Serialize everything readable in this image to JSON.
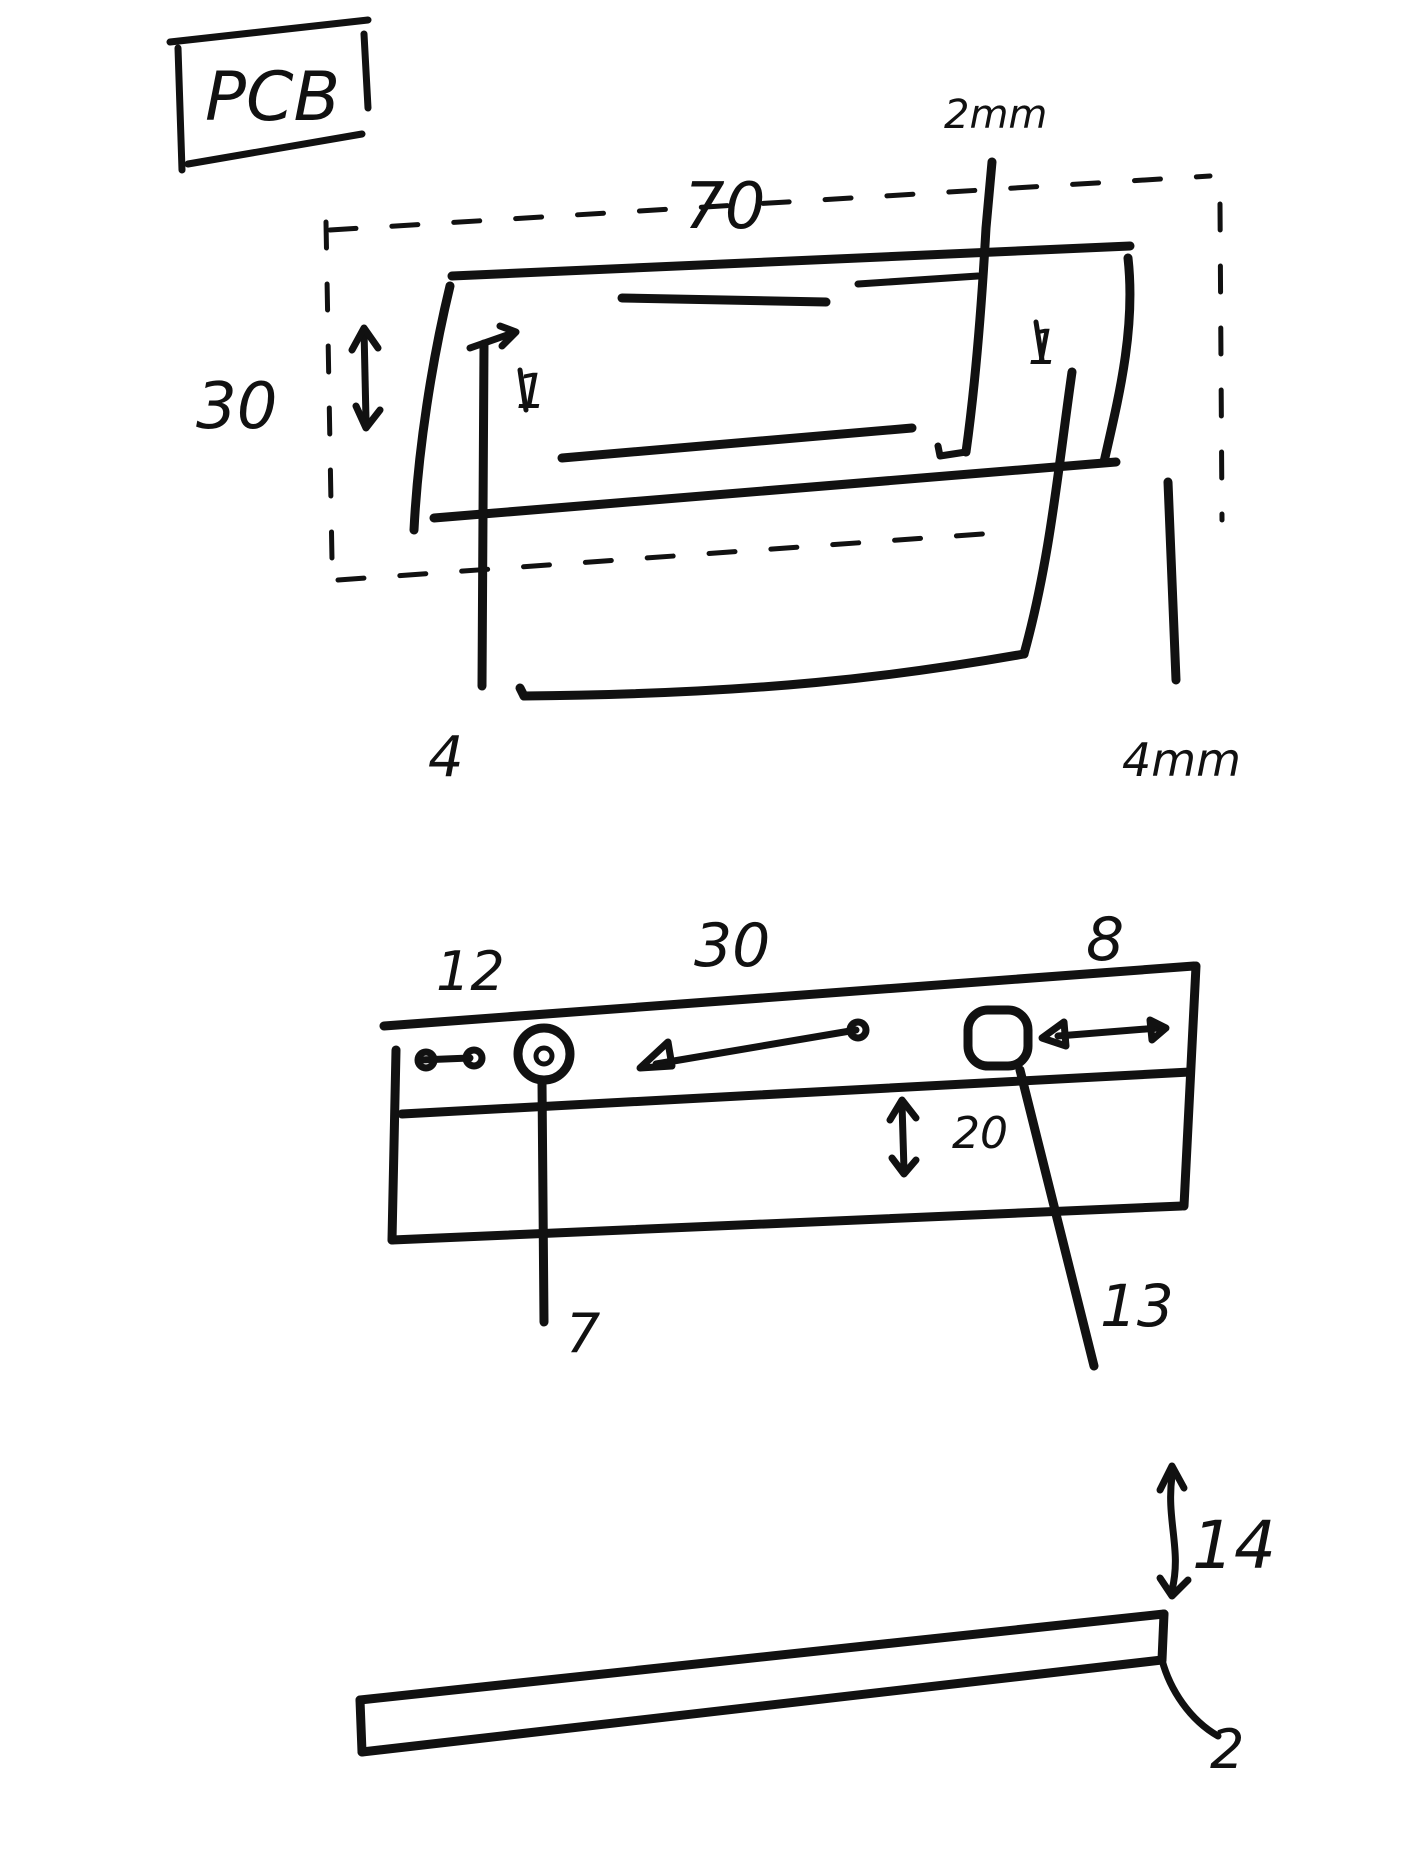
{
  "title": "PCB",
  "top_view": {
    "width": "70",
    "height": "30",
    "trace_width": "2mm",
    "inset_left": "1",
    "inset_right": "1",
    "margin_left": "4",
    "margin_right": "4mm"
  },
  "side_view": {
    "left_offset": "12",
    "span": "30",
    "right_offset": "8",
    "height": "20",
    "hole_diameter": "7",
    "pad_size": "13"
  },
  "profile_view": {
    "thickness": "14",
    "edge": "2"
  },
  "colors": {
    "ink": "#111111",
    "paper": "#ffffff"
  }
}
